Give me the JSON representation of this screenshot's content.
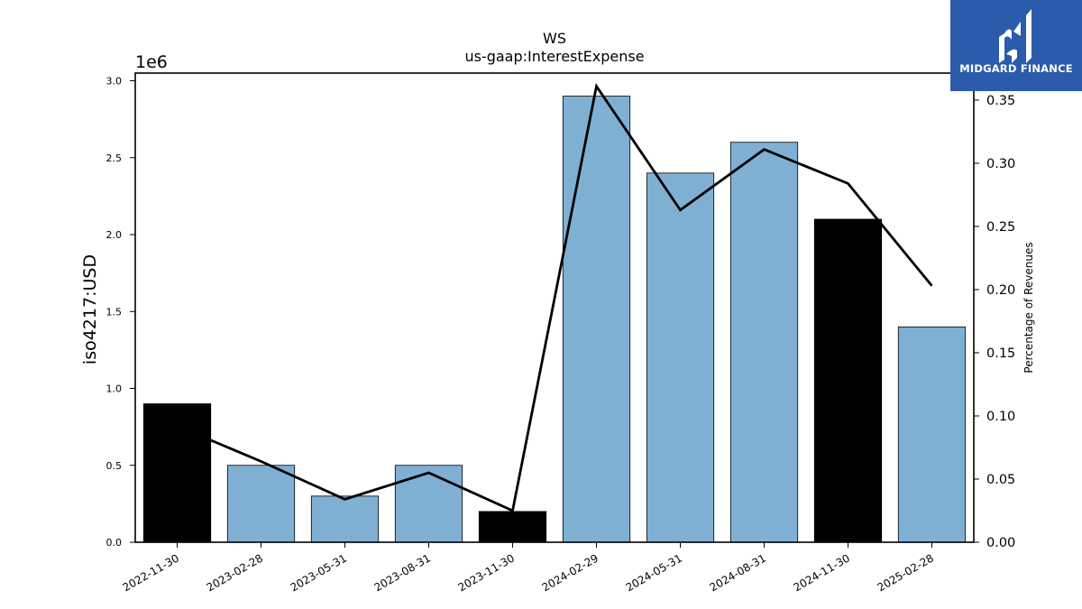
{
  "chart_data": {
    "type": "bar",
    "title": "WS",
    "subtitle": "us-gaap:InterestExpense",
    "ylabel": "iso4217:USD",
    "y_offset_label": "1e6",
    "y2label": "Percentage of Revenues",
    "categories": [
      "2022-11-30",
      "2023-02-28",
      "2023-05-31",
      "2023-08-31",
      "2023-11-30",
      "2024-02-29",
      "2024-05-31",
      "2024-08-31",
      "2024-11-30",
      "2025-02-28"
    ],
    "values": [
      900000,
      500000,
      300000,
      500000,
      200000,
      2900000,
      2400000,
      2600000,
      2100000,
      1400000
    ],
    "highlight": [
      true,
      false,
      false,
      false,
      true,
      false,
      false,
      false,
      true,
      false
    ],
    "line_values": [
      0.092,
      0.064,
      0.034,
      0.055,
      0.025,
      0.361,
      0.263,
      0.311,
      0.284,
      0.203
    ],
    "ylim": [
      0,
      3050000
    ],
    "y2lim": [
      0,
      0.3714
    ],
    "yticks": [
      "0.0",
      "0.5",
      "1.0",
      "1.5",
      "2.0",
      "2.5",
      "3.0"
    ],
    "ytick_values": [
      0,
      500000,
      1000000,
      1500000,
      2000000,
      2500000,
      3000000
    ],
    "y2ticks": [
      "0.00",
      "0.05",
      "0.10",
      "0.15",
      "0.20",
      "0.25",
      "0.30",
      "0.35"
    ],
    "y2tick_values": [
      0,
      0.05,
      0.1,
      0.15,
      0.2,
      0.25,
      0.3,
      0.35
    ],
    "colors": {
      "bar": "#7fb0d4",
      "highlight": "#000000",
      "line": "#000000"
    },
    "grid": false
  },
  "logo": {
    "text": "MIDGARD FINANCE"
  }
}
